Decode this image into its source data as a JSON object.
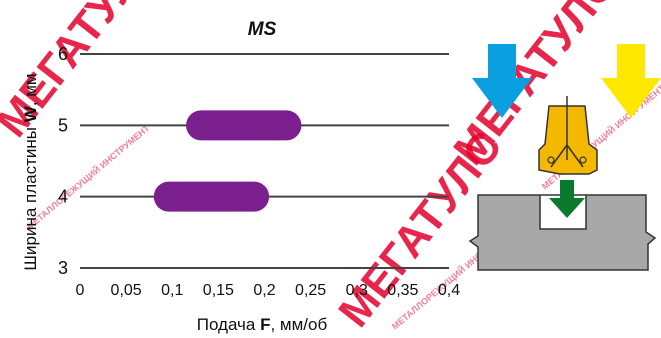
{
  "chart_data": {
    "type": "bar",
    "title": "MS",
    "xlabel_prefix": "Подача ",
    "xlabel_symbol": "F",
    "xlabel_suffix": ", мм/об",
    "ylabel_prefix": "Ширина пластины ",
    "ylabel_symbol": "W",
    "ylabel_suffix": ", мм",
    "xlim": [
      0,
      0.4
    ],
    "ylim": [
      3,
      6
    ],
    "xticks": [
      0,
      0.05,
      0.1,
      0.15,
      0.2,
      0.25,
      0.3,
      0.35,
      0.4
    ],
    "xtick_labels": [
      "0",
      "0,05",
      "0,1",
      "0,15",
      "0,2",
      "0,25",
      "0,3",
      "0,35",
      "0,4"
    ],
    "yticks": [
      3,
      4,
      5,
      6
    ],
    "ytick_labels": [
      "3",
      "4",
      "5",
      "6"
    ],
    "grid": "horizontal",
    "bands": [
      {
        "width": 5,
        "feed_min": 0.115,
        "feed_max": 0.24
      },
      {
        "width": 4,
        "feed_min": 0.08,
        "feed_max": 0.205
      }
    ],
    "band_color": "#7b1f8e"
  },
  "illustration": {
    "arrow_left_color": "#0aa0e0",
    "arrow_right_color": "#ffe800",
    "arrow_down_color": "#0a7a2e",
    "insert_color": "#f5b800",
    "workpiece_color": "#a8a8a8"
  },
  "watermark": {
    "text": "МЕГАТУЛС",
    "subtext": "МЕТАЛЛОРЕЖУЩИЙ ИНСТРУМЕНТ",
    "color": "#e4002b"
  }
}
